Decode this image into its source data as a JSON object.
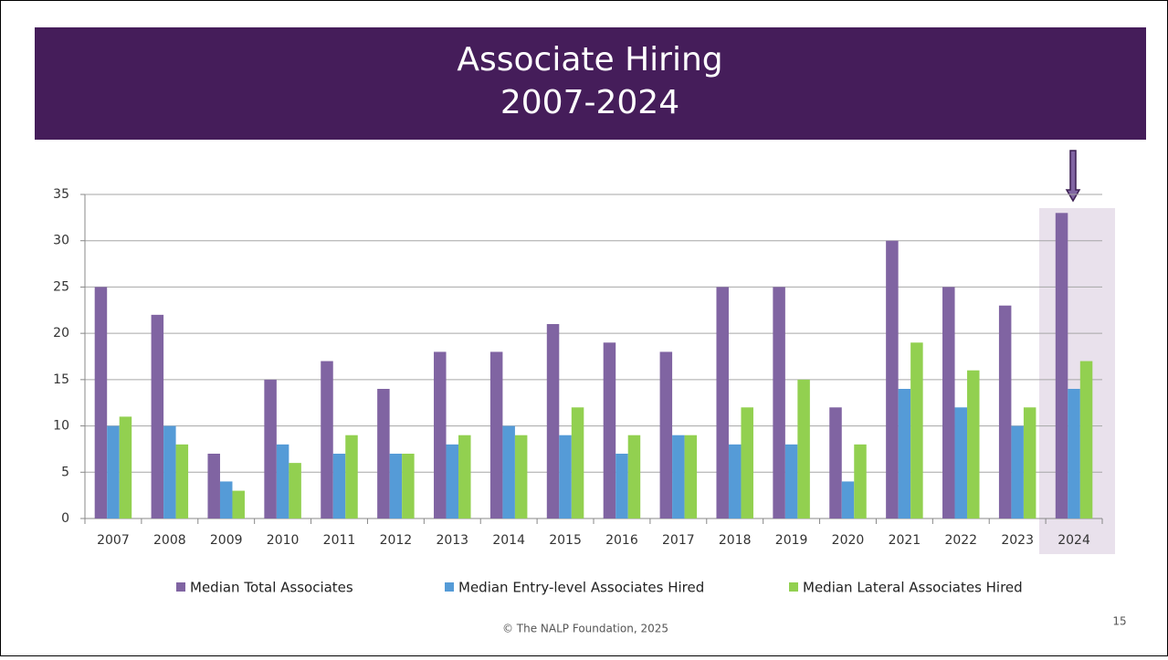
{
  "chart_data": {
    "type": "bar",
    "title": "Associate Hiring",
    "subtitle": "2007-2024",
    "categories": [
      "2007",
      "2008",
      "2009",
      "2010",
      "2011",
      "2012",
      "2013",
      "2014",
      "2015",
      "2016",
      "2017",
      "2018",
      "2019",
      "2020",
      "2021",
      "2022",
      "2023",
      "2024"
    ],
    "series": [
      {
        "name": "Median Total Associates",
        "color": "#8064a2",
        "values": [
          25,
          22,
          7,
          15,
          17,
          14,
          18,
          18,
          21,
          19,
          18,
          25,
          25,
          12,
          30,
          25,
          23,
          33
        ]
      },
      {
        "name": "Median Entry-level Associates Hired",
        "color": "#559bd7",
        "values": [
          10,
          10,
          4,
          8,
          7,
          7,
          8,
          10,
          9,
          7,
          9,
          8,
          8,
          4,
          14,
          12,
          10,
          14
        ]
      },
      {
        "name": "Median Lateral Associates Hired",
        "color": "#92d050",
        "values": [
          11,
          8,
          3,
          6,
          9,
          7,
          9,
          9,
          12,
          9,
          9,
          12,
          15,
          8,
          19,
          16,
          12,
          17
        ]
      }
    ],
    "ylim": [
      0,
      35
    ],
    "yticks": [
      0,
      5,
      10,
      15,
      20,
      25,
      30,
      35
    ],
    "grid": true,
    "legend": "bottom"
  },
  "footer": "© The NALP Foundation, 2025",
  "page_number": "15"
}
